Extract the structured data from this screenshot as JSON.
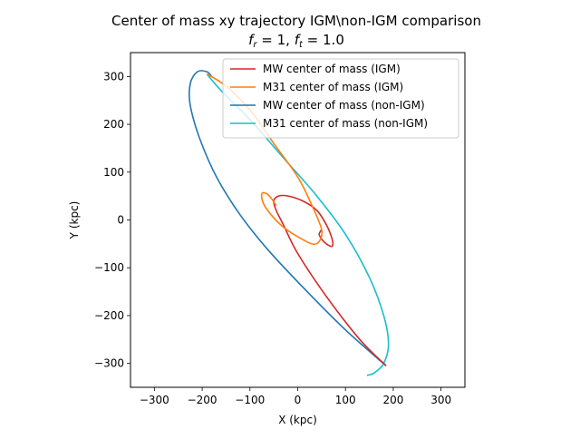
{
  "chart_data": {
    "type": "line",
    "title": "Center of mass xy trajectory IGM\\non-IGM comparison",
    "subtitle": {
      "fr_symbol": "f",
      "fr_sub": "r",
      "fr_rest": " =  1, ",
      "ft_symbol": "f",
      "ft_sub": "t",
      "ft_rest": " =  1.0"
    },
    "xlabel": "X (kpc)",
    "ylabel": "Y (kpc)",
    "xlim": [
      -350,
      350
    ],
    "ylim": [
      -350,
      350
    ],
    "xticks": [
      -300,
      -200,
      -100,
      0,
      100,
      200,
      300
    ],
    "yticks": [
      -300,
      -200,
      -100,
      0,
      100,
      200,
      300
    ],
    "x_tick_labels": [
      "−300",
      "−200",
      "−100",
      "0",
      "100",
      "200",
      "300"
    ],
    "y_tick_labels": [
      "−300",
      "−200",
      "−100",
      "0",
      "100",
      "200",
      "300"
    ],
    "grid": false,
    "legend_position": "top-right",
    "series": [
      {
        "name": "MW center of mass (non-IGM)",
        "color": "#1f77b4",
        "points": [
          [
            185,
            -305
          ],
          [
            100,
            -230
          ],
          [
            20,
            -150
          ],
          [
            -60,
            -65
          ],
          [
            -120,
            10
          ],
          [
            -170,
            90
          ],
          [
            -205,
            170
          ],
          [
            -225,
            240
          ],
          [
            -225,
            285
          ],
          [
            -210,
            310
          ],
          [
            -190,
            310
          ],
          [
            -180,
            300
          ]
        ]
      },
      {
        "name": "M31 center of mass (non-IGM)",
        "color": "#17becf",
        "points": [
          [
            -190,
            305
          ],
          [
            -160,
            270
          ],
          [
            -100,
            210
          ],
          [
            -30,
            130
          ],
          [
            40,
            50
          ],
          [
            100,
            -30
          ],
          [
            150,
            -120
          ],
          [
            180,
            -200
          ],
          [
            190,
            -260
          ],
          [
            180,
            -300
          ],
          [
            160,
            -320
          ],
          [
            145,
            -325
          ]
        ]
      },
      {
        "name": "MW center of mass (IGM)",
        "color": "#d62728",
        "points": [
          [
            185,
            -305
          ],
          [
            130,
            -250
          ],
          [
            60,
            -160
          ],
          [
            0,
            -70
          ],
          [
            -30,
            -10
          ],
          [
            -45,
            20
          ],
          [
            -50,
            40
          ],
          [
            -40,
            50
          ],
          [
            -20,
            50
          ],
          [
            10,
            40
          ],
          [
            40,
            20
          ],
          [
            60,
            -10
          ],
          [
            72,
            -40
          ],
          [
            72,
            -55
          ],
          [
            60,
            -50
          ],
          [
            50,
            -40
          ],
          [
            45,
            -30
          ],
          [
            50,
            -20
          ]
        ]
      },
      {
        "name": "M31 center of mass (IGM)",
        "color": "#ff7f0e",
        "points": [
          [
            -190,
            305
          ],
          [
            -150,
            280
          ],
          [
            -100,
            230
          ],
          [
            -50,
            160
          ],
          [
            0,
            90
          ],
          [
            30,
            30
          ],
          [
            50,
            -20
          ],
          [
            45,
            -45
          ],
          [
            30,
            -50
          ],
          [
            0,
            -35
          ],
          [
            -30,
            -15
          ],
          [
            -55,
            10
          ],
          [
            -72,
            35
          ],
          [
            -75,
            55
          ],
          [
            -65,
            55
          ],
          [
            -55,
            45
          ],
          [
            -45,
            30
          ]
        ]
      }
    ],
    "legend_order": [
      2,
      3,
      0,
      1
    ]
  }
}
